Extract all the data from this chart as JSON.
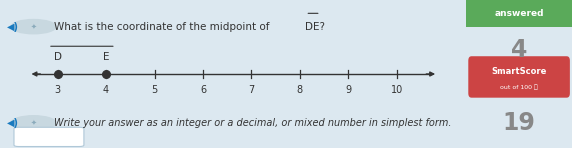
{
  "bg_color": "#dce8f0",
  "right_bg_color": "#e8eef2",
  "question_text": "What is the coordinate of the midpoint of ",
  "overline_text": "DE",
  "question_suffix": "?",
  "number_line_ticks": [
    3,
    4,
    5,
    6,
    7,
    8,
    9,
    10
  ],
  "point_D": 3,
  "point_E": 4,
  "point_D_label": "D",
  "point_E_label": "E",
  "point_color": "#333333",
  "answer_text": "Write your answer as an integer or a decimal, or mixed number in simplest form.",
  "side_label_answered": "answered",
  "side_number_top": "4",
  "side_smartscore_label": "SmartScore",
  "side_smartscore_sub": "out of 100",
  "side_smartscore_info": "ⓘ",
  "side_number_bottom": "19",
  "green_bg": "#5aaa5a",
  "red_bg": "#cc4444",
  "text_color": "#333333",
  "speaker_color": "#1a7abf",
  "icon_color": "#c8d8e0",
  "input_box_color": "#ffffff",
  "input_box_border": "#b0c8d8",
  "number_color": "#888888"
}
